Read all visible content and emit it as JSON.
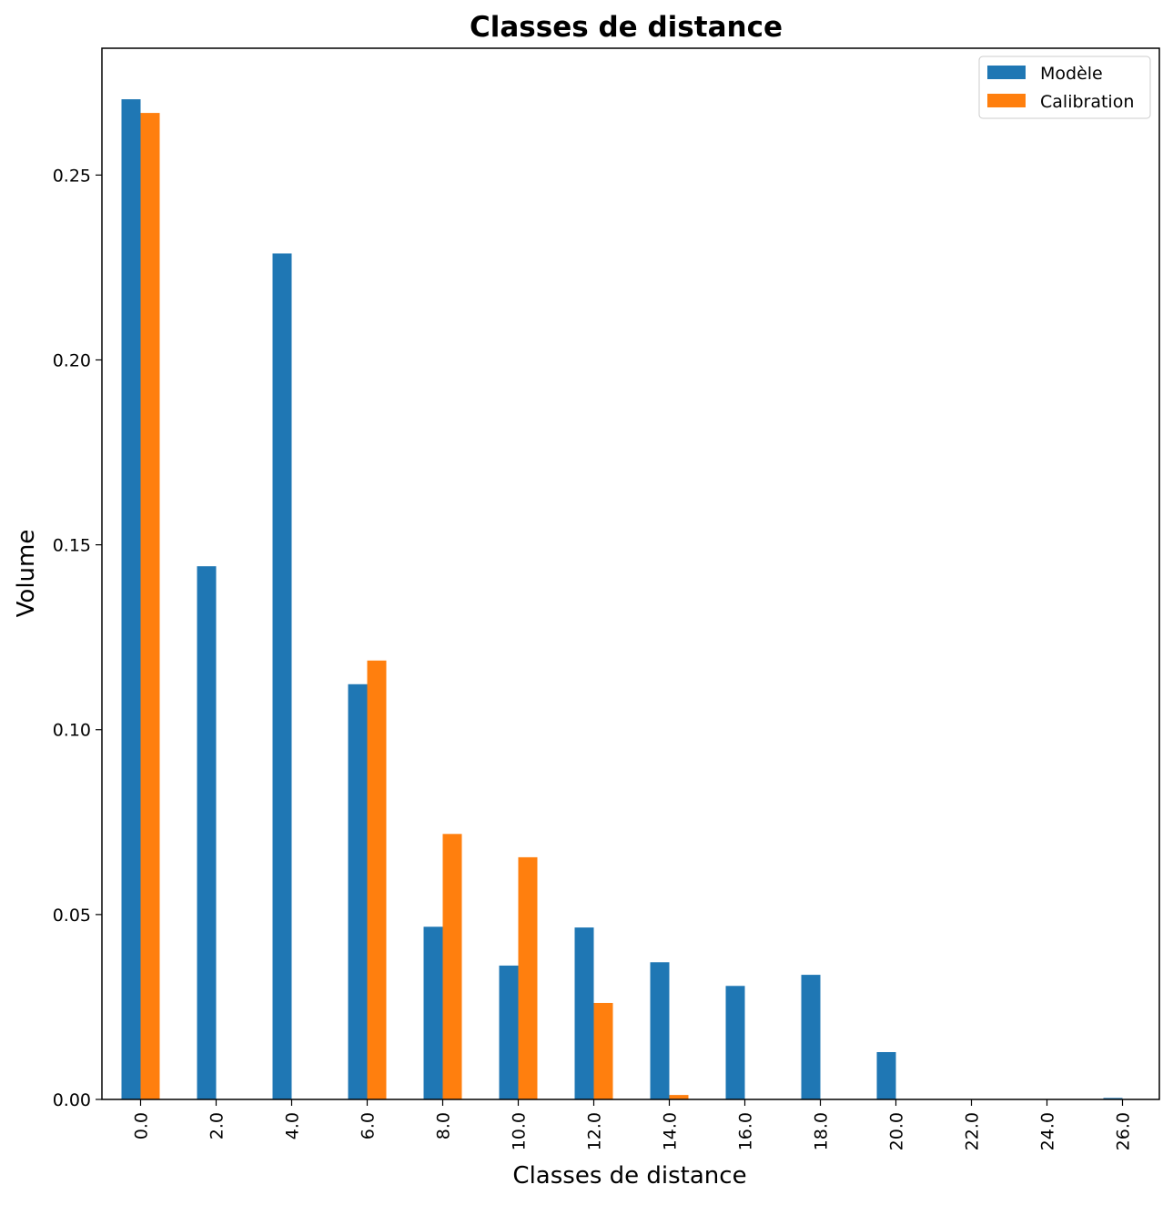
{
  "chart_data": {
    "type": "bar",
    "title": "Classes de distance",
    "xlabel": "Classes de distance",
    "ylabel": "Volume",
    "categories": [
      "0.0",
      "2.0",
      "4.0",
      "6.0",
      "8.0",
      "10.0",
      "12.0",
      "14.0",
      "16.0",
      "18.0",
      "20.0",
      "22.0",
      "24.0",
      "26.0"
    ],
    "series": [
      {
        "name": "Modèle",
        "color": "#1f77b4",
        "values": [
          0.2705,
          0.1442,
          0.2288,
          0.1123,
          0.0467,
          0.0362,
          0.0465,
          0.0371,
          0.0307,
          0.0337,
          0.0128,
          0.0,
          0.0,
          0.0004
        ]
      },
      {
        "name": "Calibration",
        "color": "#ff7f0e",
        "values": [
          0.2668,
          0.0,
          0.0,
          0.1187,
          0.0718,
          0.0655,
          0.0261,
          0.0012,
          0.0,
          0.0,
          0.0,
          0.0,
          0.0,
          0.0
        ]
      }
    ],
    "ylim": [
      0,
      0.2843
    ],
    "yticks": [
      "0.00",
      "0.05",
      "0.10",
      "0.15",
      "0.20",
      "0.25"
    ],
    "grid": false,
    "legend_position": "top-right"
  }
}
